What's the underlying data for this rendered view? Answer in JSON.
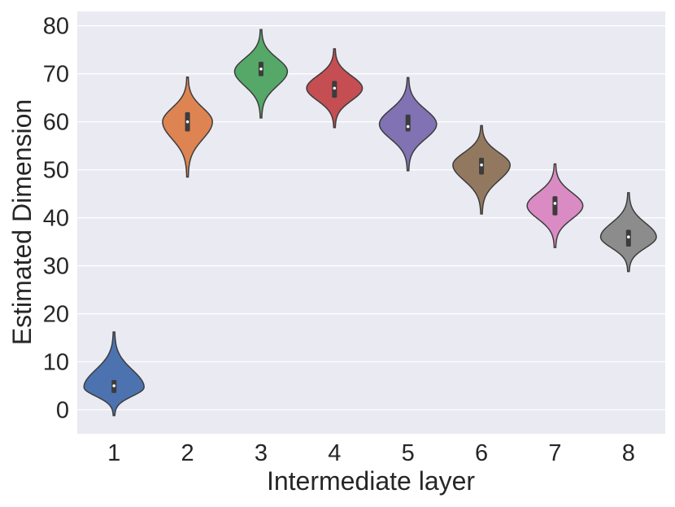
{
  "chart_data": {
    "type": "violin",
    "xlabel": "Intermediate layer",
    "ylabel": "Estimated Dimension",
    "ylim": [
      -5,
      83
    ],
    "yticks": [
      0,
      10,
      20,
      30,
      40,
      50,
      60,
      70,
      80
    ],
    "grid": true,
    "background_color": "#eaeaf2",
    "categories": [
      "1",
      "2",
      "3",
      "4",
      "5",
      "6",
      "7",
      "8"
    ],
    "violins": [
      {
        "category": "1",
        "color": "#4c72b0",
        "min": -1.2,
        "max": 16.2,
        "mode": 4.7,
        "q1": 3.5,
        "median": 5.0,
        "q3": 6.2,
        "width_at_mode": 0.4
      },
      {
        "category": "2",
        "color": "#dd8452",
        "min": 48.5,
        "max": 69.3,
        "mode": 60.0,
        "q1": 58.0,
        "median": 60.0,
        "q3": 62.0,
        "width_at_mode": 0.33
      },
      {
        "category": "3",
        "color": "#55a868",
        "min": 60.8,
        "max": 79.2,
        "mode": 70.5,
        "q1": 69.5,
        "median": 71.0,
        "q3": 72.5,
        "width_at_mode": 0.35
      },
      {
        "category": "4",
        "color": "#c44e52",
        "min": 58.8,
        "max": 75.2,
        "mode": 67.0,
        "q1": 65.0,
        "median": 67.0,
        "q3": 68.5,
        "width_at_mode": 0.37
      },
      {
        "category": "5",
        "color": "#8172b3",
        "min": 49.8,
        "max": 69.2,
        "mode": 59.5,
        "q1": 58.0,
        "median": 59.0,
        "q3": 61.5,
        "width_at_mode": 0.38
      },
      {
        "category": "6",
        "color": "#937860",
        "min": 40.8,
        "max": 59.2,
        "mode": 51.0,
        "q1": 49.0,
        "median": 51.0,
        "q3": 52.5,
        "width_at_mode": 0.38
      },
      {
        "category": "7",
        "color": "#da8bc3",
        "min": 33.8,
        "max": 51.2,
        "mode": 42.5,
        "q1": 40.5,
        "median": 43.0,
        "q3": 44.5,
        "width_at_mode": 0.37
      },
      {
        "category": "8",
        "color": "#8c8c8c",
        "min": 28.8,
        "max": 45.2,
        "mode": 36.0,
        "q1": 34.0,
        "median": 36.0,
        "q3": 37.5,
        "width_at_mode": 0.37
      }
    ]
  }
}
